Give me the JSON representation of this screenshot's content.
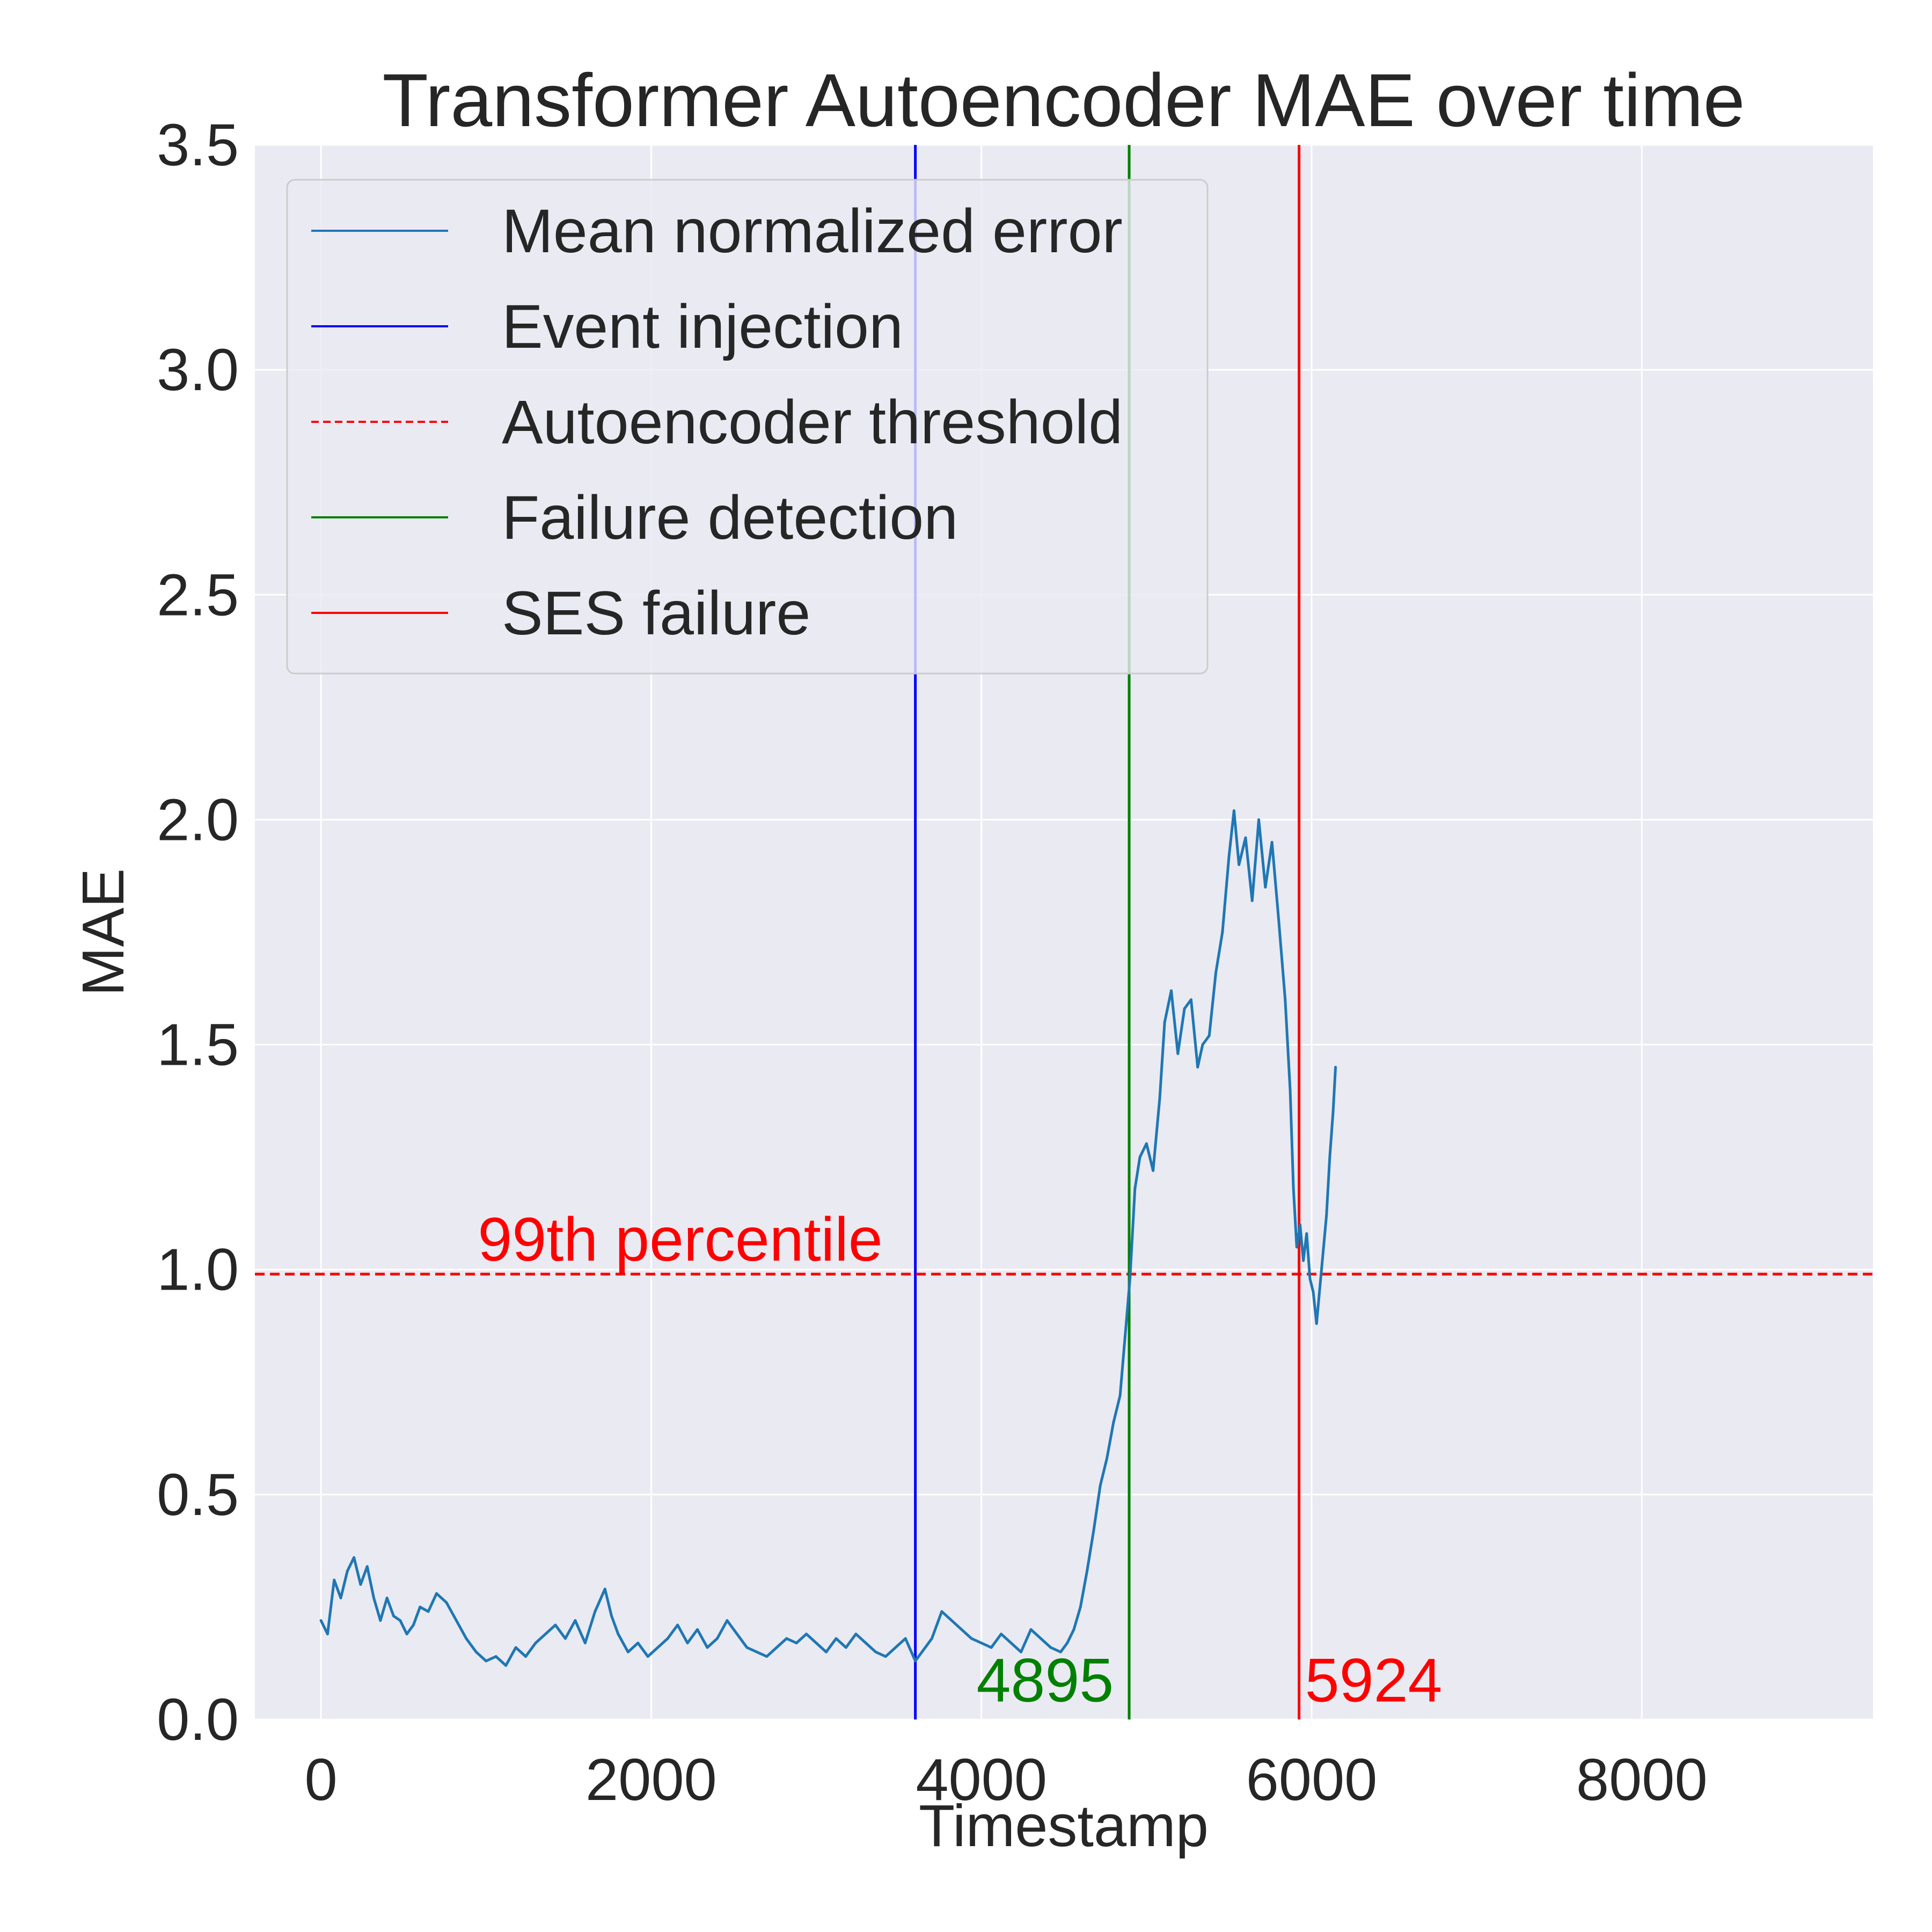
{
  "chart_data": {
    "type": "line",
    "title": "Transformer Autoencoder MAE over time",
    "xlabel": "Timestamp",
    "ylabel": "MAE",
    "xlim": [
      -400,
      9400
    ],
    "ylim": [
      0,
      3.5
    ],
    "x_ticks": [
      0,
      2000,
      4000,
      6000,
      8000
    ],
    "x_tick_labels": [
      "0",
      "2000",
      "4000",
      "6000",
      "8000"
    ],
    "y_ticks": [
      0,
      0.5,
      1.0,
      1.5,
      2.0,
      2.5,
      3.0,
      3.5
    ],
    "y_tick_labels": [
      "0.0",
      "0.5",
      "1.0",
      "1.5",
      "2.0",
      "2.5",
      "3.0",
      "3.5"
    ],
    "grid": true,
    "legend_position": "top-left",
    "series": [
      {
        "name": "Mean normalized error",
        "color": "#1f77b4",
        "style": "solid",
        "points": [
          [
            0,
            0.22
          ],
          [
            40,
            0.19
          ],
          [
            80,
            0.31
          ],
          [
            120,
            0.27
          ],
          [
            160,
            0.33
          ],
          [
            200,
            0.36
          ],
          [
            240,
            0.3
          ],
          [
            280,
            0.34
          ],
          [
            320,
            0.27
          ],
          [
            360,
            0.22
          ],
          [
            400,
            0.27
          ],
          [
            440,
            0.23
          ],
          [
            480,
            0.22
          ],
          [
            520,
            0.19
          ],
          [
            560,
            0.21
          ],
          [
            600,
            0.25
          ],
          [
            650,
            0.24
          ],
          [
            700,
            0.28
          ],
          [
            760,
            0.26
          ],
          [
            820,
            0.22
          ],
          [
            880,
            0.18
          ],
          [
            940,
            0.15
          ],
          [
            1000,
            0.13
          ],
          [
            1060,
            0.14
          ],
          [
            1120,
            0.12
          ],
          [
            1180,
            0.16
          ],
          [
            1240,
            0.14
          ],
          [
            1300,
            0.17
          ],
          [
            1360,
            0.19
          ],
          [
            1420,
            0.21
          ],
          [
            1480,
            0.18
          ],
          [
            1540,
            0.22
          ],
          [
            1600,
            0.17
          ],
          [
            1660,
            0.24
          ],
          [
            1720,
            0.29
          ],
          [
            1760,
            0.23
          ],
          [
            1800,
            0.19
          ],
          [
            1860,
            0.15
          ],
          [
            1920,
            0.17
          ],
          [
            1980,
            0.14
          ],
          [
            2040,
            0.16
          ],
          [
            2100,
            0.18
          ],
          [
            2160,
            0.21
          ],
          [
            2220,
            0.17
          ],
          [
            2280,
            0.2
          ],
          [
            2340,
            0.16
          ],
          [
            2400,
            0.18
          ],
          [
            2460,
            0.22
          ],
          [
            2520,
            0.19
          ],
          [
            2580,
            0.16
          ],
          [
            2640,
            0.15
          ],
          [
            2700,
            0.14
          ],
          [
            2760,
            0.16
          ],
          [
            2820,
            0.18
          ],
          [
            2880,
            0.17
          ],
          [
            2940,
            0.19
          ],
          [
            3000,
            0.17
          ],
          [
            3060,
            0.15
          ],
          [
            3120,
            0.18
          ],
          [
            3180,
            0.16
          ],
          [
            3240,
            0.19
          ],
          [
            3300,
            0.17
          ],
          [
            3360,
            0.15
          ],
          [
            3420,
            0.14
          ],
          [
            3480,
            0.16
          ],
          [
            3540,
            0.18
          ],
          [
            3600,
            0.13
          ],
          [
            3640,
            0.15
          ],
          [
            3700,
            0.18
          ],
          [
            3760,
            0.24
          ],
          [
            3820,
            0.22
          ],
          [
            3880,
            0.2
          ],
          [
            3940,
            0.18
          ],
          [
            4000,
            0.17
          ],
          [
            4060,
            0.16
          ],
          [
            4120,
            0.19
          ],
          [
            4180,
            0.17
          ],
          [
            4240,
            0.15
          ],
          [
            4300,
            0.2
          ],
          [
            4360,
            0.18
          ],
          [
            4420,
            0.16
          ],
          [
            4480,
            0.15
          ],
          [
            4520,
            0.17
          ],
          [
            4560,
            0.2
          ],
          [
            4600,
            0.25
          ],
          [
            4640,
            0.33
          ],
          [
            4680,
            0.42
          ],
          [
            4720,
            0.52
          ],
          [
            4760,
            0.58
          ],
          [
            4800,
            0.66
          ],
          [
            4840,
            0.72
          ],
          [
            4870,
            0.85
          ],
          [
            4900,
            0.98
          ],
          [
            4930,
            1.18
          ],
          [
            4960,
            1.25
          ],
          [
            5000,
            1.28
          ],
          [
            5040,
            1.22
          ],
          [
            5080,
            1.38
          ],
          [
            5110,
            1.55
          ],
          [
            5150,
            1.62
          ],
          [
            5190,
            1.48
          ],
          [
            5230,
            1.58
          ],
          [
            5270,
            1.6
          ],
          [
            5310,
            1.45
          ],
          [
            5340,
            1.5
          ],
          [
            5380,
            1.52
          ],
          [
            5420,
            1.66
          ],
          [
            5460,
            1.75
          ],
          [
            5500,
            1.92
          ],
          [
            5530,
            2.02
          ],
          [
            5560,
            1.9
          ],
          [
            5600,
            1.96
          ],
          [
            5640,
            1.82
          ],
          [
            5680,
            2.0
          ],
          [
            5720,
            1.85
          ],
          [
            5760,
            1.95
          ],
          [
            5800,
            1.78
          ],
          [
            5840,
            1.6
          ],
          [
            5870,
            1.4
          ],
          [
            5890,
            1.18
          ],
          [
            5910,
            1.05
          ],
          [
            5930,
            1.1
          ],
          [
            5950,
            1.02
          ],
          [
            5970,
            1.08
          ],
          [
            5990,
            0.98
          ],
          [
            6010,
            0.95
          ],
          [
            6030,
            0.88
          ],
          [
            6060,
            1.0
          ],
          [
            6090,
            1.12
          ],
          [
            6110,
            1.25
          ],
          [
            6130,
            1.35
          ],
          [
            6145,
            1.45
          ]
        ]
      }
    ],
    "reference_lines": [
      {
        "name": "Event injection",
        "orientation": "vertical",
        "x": 3600,
        "color": "#0000ff",
        "style": "solid"
      },
      {
        "name": "Autoencoder threshold",
        "orientation": "horizontal",
        "y": 0.99,
        "color": "#ff0000",
        "style": "dashed"
      },
      {
        "name": "Failure detection",
        "orientation": "vertical",
        "x": 4895,
        "color": "#008000",
        "style": "solid"
      },
      {
        "name": "SES failure",
        "orientation": "vertical",
        "x": 5924,
        "color": "#ff0000",
        "style": "solid"
      }
    ],
    "annotations": [
      {
        "text": "99th percentile",
        "x": 950,
        "y": 1.02,
        "color": "#ff0000"
      },
      {
        "text": "4895",
        "x": 3970,
        "y": 0.04,
        "color": "#008000"
      },
      {
        "text": "5924",
        "x": 5960,
        "y": 0.04,
        "color": "#ff0000"
      }
    ],
    "legend": [
      {
        "label": "Mean normalized error",
        "color": "#1f77b4",
        "style": "solid"
      },
      {
        "label": "Event injection",
        "color": "#0000ff",
        "style": "solid"
      },
      {
        "label": "Autoencoder threshold",
        "color": "#ff0000",
        "style": "dashed"
      },
      {
        "label": "Failure detection",
        "color": "#008000",
        "style": "solid"
      },
      {
        "label": "SES failure",
        "color": "#ff0000",
        "style": "solid"
      }
    ]
  }
}
